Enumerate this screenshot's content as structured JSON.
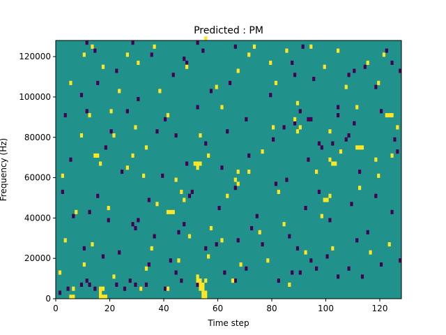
{
  "chart_data": {
    "type": "heatmap",
    "title": "Predicted : PM",
    "xlabel": "Time step",
    "ylabel": "Frequency (Hz)",
    "xlim": [
      0,
      128
    ],
    "ylim": [
      0,
      128000
    ],
    "x_ticks": [
      0,
      20,
      40,
      60,
      80,
      100,
      120
    ],
    "y_ticks": [
      0,
      20000,
      40000,
      60000,
      80000,
      100000,
      120000
    ],
    "y_tick_labels": [
      "0",
      "20000",
      "40000",
      "60000",
      "80000",
      "100000",
      "120000"
    ],
    "grid": false,
    "legend": "none",
    "value_levels": [
      -1,
      0,
      1
    ],
    "colors": {
      "low": "#440154",
      "mid": "#21918c",
      "high": "#fde725"
    },
    "background_value": 0,
    "cell_size": {
      "time_steps": 1,
      "frequency_hz": 2000
    },
    "low_cells": [
      [
        4,
        2
      ],
      [
        9,
        3
      ],
      [
        12,
        3
      ],
      [
        22,
        3
      ],
      [
        29,
        3
      ],
      [
        33,
        3
      ],
      [
        11,
        4
      ],
      [
        27,
        4
      ],
      [
        46,
        4
      ],
      [
        66,
        4
      ],
      [
        104,
        5
      ],
      [
        44,
        6
      ],
      [
        90,
        6
      ],
      [
        1,
        1
      ],
      [
        14,
        2
      ],
      [
        25,
        2
      ],
      [
        31,
        2
      ],
      [
        40,
        2
      ],
      [
        52,
        3
      ],
      [
        82,
        4
      ],
      [
        113,
        5
      ],
      [
        17,
        10
      ],
      [
        34,
        8
      ],
      [
        42,
        9
      ],
      [
        62,
        6
      ],
      [
        70,
        7
      ],
      [
        87,
        6
      ],
      [
        96,
        7
      ],
      [
        108,
        7
      ],
      [
        120,
        8
      ],
      [
        127,
        9
      ],
      [
        10,
        12
      ],
      [
        23,
        11
      ],
      [
        55,
        12
      ],
      [
        67,
        14
      ],
      [
        76,
        13
      ],
      [
        89,
        12
      ],
      [
        100,
        10
      ],
      [
        111,
        14
      ],
      [
        36,
        15
      ],
      [
        45,
        16
      ],
      [
        59,
        13
      ],
      [
        94,
        9
      ],
      [
        29,
        17
      ],
      [
        47,
        18
      ],
      [
        19,
        19
      ],
      [
        30,
        19
      ],
      [
        72,
        17
      ],
      [
        86,
        15
      ],
      [
        101,
        19
      ],
      [
        115,
        16
      ],
      [
        6,
        20
      ],
      [
        28,
        18
      ],
      [
        42,
        21
      ],
      [
        60,
        22
      ],
      [
        74,
        20
      ],
      [
        92,
        22
      ],
      [
        109,
        23
      ],
      [
        124,
        21
      ],
      [
        2,
        26
      ],
      [
        15,
        25
      ],
      [
        34,
        24
      ],
      [
        50,
        26
      ],
      [
        66,
        27
      ],
      [
        81,
        28
      ],
      [
        97,
        26
      ],
      [
        118,
        25
      ],
      [
        39,
        30
      ],
      [
        61,
        32
      ],
      [
        85,
        29
      ],
      [
        112,
        31
      ],
      [
        5,
        34
      ],
      [
        24,
        31
      ],
      [
        48,
        33
      ],
      [
        71,
        35
      ],
      [
        93,
        34
      ],
      [
        126,
        36
      ],
      [
        18,
        37
      ],
      [
        55,
        38
      ],
      [
        80,
        39
      ],
      [
        102,
        38
      ],
      [
        20,
        41
      ],
      [
        37,
        41
      ],
      [
        44,
        40
      ],
      [
        63,
        41
      ],
      [
        84,
        42
      ],
      [
        88,
        43
      ],
      [
        110,
        43
      ],
      [
        3,
        45
      ],
      [
        11,
        46
      ],
      [
        26,
        46
      ],
      [
        40,
        44
      ],
      [
        52,
        47
      ],
      [
        70,
        44
      ],
      [
        90,
        46
      ],
      [
        104,
        45
      ],
      [
        120,
        46
      ],
      [
        9,
        50
      ],
      [
        30,
        49
      ],
      [
        57,
        51
      ],
      [
        79,
        50
      ],
      [
        118,
        52
      ],
      [
        15,
        53
      ],
      [
        43,
        55
      ],
      [
        64,
        53
      ],
      [
        95,
        54
      ],
      [
        108,
        55
      ],
      [
        127,
        56
      ],
      [
        22,
        56
      ],
      [
        87,
        58
      ],
      [
        114,
        57
      ],
      [
        35,
        60
      ],
      [
        14,
        61
      ],
      [
        54,
        61
      ],
      [
        91,
        62
      ],
      [
        66,
        62
      ],
      [
        122,
        61
      ],
      [
        11,
        63
      ],
      [
        28,
        63
      ],
      [
        52,
        63
      ],
      [
        47,
        59
      ],
      [
        48,
        58
      ],
      [
        124,
        58
      ],
      [
        88,
        55
      ],
      [
        110,
        56
      ],
      [
        104,
        47
      ],
      [
        93,
        44
      ],
      [
        94,
        44
      ],
      [
        97,
        38
      ],
      [
        98,
        37
      ],
      [
        107,
        39
      ],
      [
        108,
        40
      ],
      [
        125,
        39
      ],
      [
        12,
        21
      ],
      [
        49,
        25
      ]
    ],
    "high_cells": [
      [
        6,
        2
      ],
      [
        16,
        2
      ],
      [
        17,
        2
      ],
      [
        31,
        2
      ],
      [
        41,
        2
      ],
      [
        53,
        3
      ],
      [
        54,
        3
      ],
      [
        55,
        4
      ],
      [
        65,
        4
      ],
      [
        86,
        3
      ],
      [
        1,
        6
      ],
      [
        10,
        8
      ],
      [
        21,
        5
      ],
      [
        33,
        7
      ],
      [
        45,
        9
      ],
      [
        56,
        10
      ],
      [
        68,
        8
      ],
      [
        78,
        9
      ],
      [
        92,
        11
      ],
      [
        102,
        12
      ],
      [
        116,
        11
      ],
      [
        123,
        13
      ],
      [
        3,
        14
      ],
      [
        13,
        13
      ],
      [
        35,
        12
      ],
      [
        49,
        15
      ],
      [
        57,
        17
      ],
      [
        61,
        14
      ],
      [
        75,
        16
      ],
      [
        84,
        18
      ],
      [
        98,
        20
      ],
      [
        7,
        21
      ],
      [
        19,
        22
      ],
      [
        37,
        23
      ],
      [
        47,
        24
      ],
      [
        63,
        25
      ],
      [
        82,
        26
      ],
      [
        112,
        27
      ],
      [
        2,
        30
      ],
      [
        26,
        32
      ],
      [
        44,
        29
      ],
      [
        71,
        31
      ],
      [
        96,
        31
      ],
      [
        119,
        30
      ],
      [
        14,
        35
      ],
      [
        33,
        37
      ],
      [
        56,
        35
      ],
      [
        76,
        36
      ],
      [
        105,
        36
      ],
      [
        124,
        35
      ],
      [
        9,
        40
      ],
      [
        29,
        42
      ],
      [
        53,
        40
      ],
      [
        80,
        42
      ],
      [
        101,
        41
      ],
      [
        126,
        42
      ],
      [
        20,
        46
      ],
      [
        41,
        45
      ],
      [
        61,
        47
      ],
      [
        89,
        48
      ],
      [
        111,
        47
      ],
      [
        5,
        53
      ],
      [
        23,
        51
      ],
      [
        38,
        51
      ],
      [
        59,
        52
      ],
      [
        81,
        53
      ],
      [
        107,
        52
      ],
      [
        119,
        53
      ],
      [
        17,
        57
      ],
      [
        30,
        58
      ],
      [
        48,
        57
      ],
      [
        67,
        56
      ],
      [
        79,
        58
      ],
      [
        99,
        57
      ],
      [
        115,
        58
      ],
      [
        10,
        60
      ],
      [
        26,
        60
      ],
      [
        71,
        60
      ],
      [
        85,
        61
      ],
      [
        104,
        61
      ],
      [
        121,
        60
      ],
      [
        13,
        62
      ],
      [
        36,
        62
      ],
      [
        73,
        62
      ],
      [
        94,
        62
      ],
      [
        55,
        64
      ],
      [
        12,
        45
      ],
      [
        21,
        40
      ],
      [
        28,
        35
      ],
      [
        51,
        33
      ],
      [
        52,
        33
      ],
      [
        53,
        33
      ],
      [
        52,
        32
      ],
      [
        54,
        2
      ],
      [
        54,
        1
      ],
      [
        54,
        0
      ],
      [
        55,
        0
      ],
      [
        55,
        1
      ],
      [
        53,
        2
      ],
      [
        53,
        4
      ],
      [
        52,
        4
      ],
      [
        52,
        5
      ],
      [
        16,
        0
      ],
      [
        17,
        0
      ],
      [
        18,
        0
      ],
      [
        16,
        1
      ],
      [
        5,
        0
      ],
      [
        6,
        0
      ],
      [
        46,
        26
      ],
      [
        67,
        31
      ],
      [
        32,
        30
      ],
      [
        41,
        21
      ],
      [
        42,
        21
      ],
      [
        43,
        21
      ],
      [
        15,
        35
      ],
      [
        16,
        33
      ],
      [
        99,
        24
      ],
      [
        100,
        24
      ],
      [
        101,
        25
      ],
      [
        88,
        44
      ],
      [
        89,
        41
      ],
      [
        90,
        42
      ],
      [
        101,
        34
      ],
      [
        102,
        33
      ],
      [
        103,
        33
      ],
      [
        66,
        29
      ],
      [
        67,
        28
      ],
      [
        111,
        37
      ],
      [
        112,
        37
      ],
      [
        113,
        37
      ],
      [
        118,
        34
      ],
      [
        122,
        45
      ],
      [
        123,
        45
      ],
      [
        124,
        45
      ]
    ]
  }
}
